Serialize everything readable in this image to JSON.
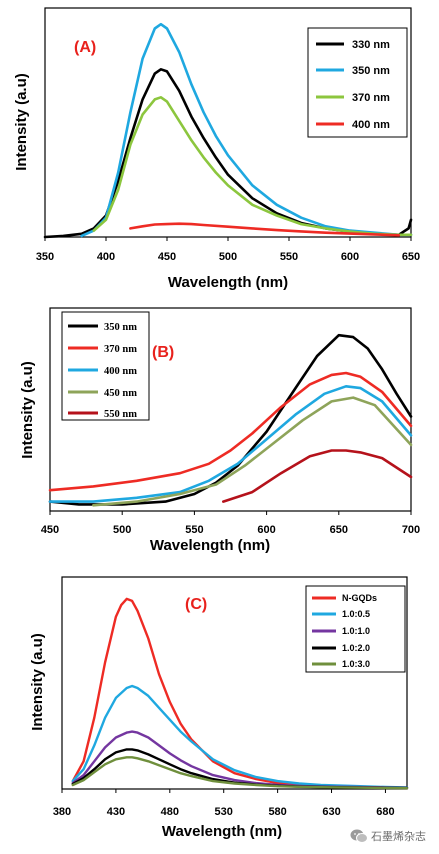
{
  "watermark": "石墨烯杂志",
  "chart_data": [
    {
      "panel": "(A)",
      "type": "line",
      "xlabel": "Wavelength (nm)",
      "ylabel": "Intensity (a.u)",
      "xlim": [
        350,
        650
      ],
      "ylim": [
        0,
        100
      ],
      "xticks": [
        350,
        400,
        450,
        500,
        550,
        600,
        650
      ],
      "yticks_visible": false,
      "legend_position": "top-right",
      "series": [
        {
          "name": "330 nm",
          "color": "#000000",
          "x": [
            350,
            365,
            380,
            390,
            400,
            410,
            420,
            430,
            440,
            445,
            450,
            460,
            470,
            480,
            490,
            500,
            520,
            540,
            560,
            580,
            600,
            620,
            640,
            648,
            650
          ],
          "y": [
            0,
            0.5,
            1.5,
            4,
            10,
            26,
            46,
            64,
            76,
            78,
            77,
            68,
            56,
            46,
            37,
            29,
            18,
            11,
            6.5,
            4,
            2.5,
            1.5,
            1,
            4,
            8
          ]
        },
        {
          "name": "350 nm",
          "color": "#1fa8e0",
          "x": [
            380,
            390,
            400,
            410,
            420,
            430,
            440,
            445,
            450,
            460,
            470,
            480,
            490,
            500,
            520,
            540,
            560,
            580,
            600,
            620,
            640,
            650
          ],
          "y": [
            0.5,
            3,
            9,
            30,
            58,
            83,
            97,
            99,
            97,
            86,
            71,
            58,
            47,
            38,
            24,
            15,
            9,
            5,
            3,
            2,
            1,
            1
          ]
        },
        {
          "name": "370 nm",
          "color": "#8cc63e",
          "x": [
            390,
            400,
            410,
            420,
            430,
            440,
            445,
            450,
            460,
            470,
            480,
            490,
            500,
            520,
            540,
            560,
            580,
            600,
            620,
            640,
            650
          ],
          "y": [
            3,
            8,
            22,
            43,
            57,
            64,
            65,
            63,
            54,
            45,
            37,
            30,
            24,
            15,
            10,
            6,
            4,
            2.5,
            1.5,
            1,
            1
          ]
        },
        {
          "name": "400 nm",
          "color": "#ee2b24",
          "x": [
            420,
            430,
            440,
            450,
            460,
            470,
            480,
            500,
            520,
            540,
            560,
            580,
            600,
            620,
            640
          ],
          "y": [
            4,
            5,
            5.8,
            6,
            6.2,
            6,
            5.6,
            4.8,
            4,
            3.2,
            2.6,
            2,
            1.6,
            1.2,
            0.8
          ]
        }
      ]
    },
    {
      "panel": "(B)",
      "type": "line",
      "xlabel": "Wavelength (nm)",
      "ylabel": "Intensity (a.u)",
      "xlim": [
        450,
        700
      ],
      "ylim": [
        0,
        100
      ],
      "xticks": [
        450,
        500,
        550,
        600,
        650,
        700
      ],
      "yticks_visible": false,
      "legend_position": "top-left",
      "series": [
        {
          "name": "350 nm",
          "color": "#000000",
          "x": [
            450,
            470,
            500,
            530,
            550,
            565,
            580,
            600,
            620,
            635,
            650,
            660,
            670,
            680,
            690,
            700
          ],
          "y": [
            5,
            3.5,
            3.5,
            5,
            9,
            15,
            24,
            42,
            65,
            82,
            93,
            92,
            86,
            75,
            62,
            50
          ]
        },
        {
          "name": "370 nm",
          "color": "#ee2b24",
          "x": [
            450,
            480,
            510,
            540,
            560,
            575,
            590,
            610,
            630,
            645,
            655,
            665,
            680,
            700
          ],
          "y": [
            11,
            13,
            16,
            20,
            25,
            32,
            41,
            55,
            67,
            72,
            73,
            71,
            63,
            45
          ]
        },
        {
          "name": "400 nm",
          "color": "#1fa8e0",
          "x": [
            450,
            480,
            510,
            540,
            560,
            580,
            600,
            620,
            640,
            655,
            665,
            680,
            700
          ],
          "y": [
            5,
            5,
            7,
            10,
            16,
            25,
            38,
            51,
            62,
            66,
            65,
            58,
            40
          ]
        },
        {
          "name": "450 nm",
          "color": "#8ea45a",
          "x": [
            480,
            510,
            540,
            565,
            585,
            605,
            625,
            645,
            660,
            675,
            700
          ],
          "y": [
            3,
            5,
            9,
            14,
            24,
            36,
            48,
            58,
            60,
            56,
            35
          ]
        },
        {
          "name": "550 nm",
          "color": "#b5121b",
          "x": [
            570,
            590,
            610,
            630,
            645,
            655,
            665,
            680,
            700
          ],
          "y": [
            5,
            10,
            20,
            29,
            32,
            32,
            31,
            28,
            18
          ]
        }
      ]
    },
    {
      "panel": "(C)",
      "type": "line",
      "xlabel": "Wavelength (nm)",
      "ylabel": "Intensity (a.u)",
      "xlim": [
        380,
        700
      ],
      "ylim": [
        0,
        100
      ],
      "xticks": [
        380,
        430,
        480,
        530,
        580,
        630,
        680
      ],
      "yticks_visible": false,
      "legend_position": "top-right",
      "series": [
        {
          "name": "N-GQDs",
          "color": "#ee2b24",
          "x": [
            390,
            400,
            410,
            420,
            430,
            435,
            440,
            445,
            450,
            460,
            470,
            480,
            490,
            500,
            520,
            540,
            560,
            580,
            600,
            620,
            650,
            680,
            700
          ],
          "y": [
            4,
            14,
            36,
            64,
            87,
            93,
            96,
            95,
            90,
            76,
            58,
            44,
            33,
            25,
            14,
            8,
            5,
            3,
            2,
            1.5,
            1,
            0.8,
            0.5
          ]
        },
        {
          "name": "1.0:0.5",
          "color": "#1fa8e0",
          "x": [
            390,
            400,
            410,
            420,
            430,
            440,
            445,
            450,
            460,
            470,
            480,
            490,
            500,
            520,
            540,
            560,
            580,
            600,
            620,
            650,
            680,
            700
          ],
          "y": [
            4,
            10,
            22,
            36,
            46,
            51,
            52,
            51,
            47,
            41,
            35,
            29,
            24,
            15,
            9.5,
            6,
            4,
            2.8,
            2,
            1.5,
            1,
            0.8
          ]
        },
        {
          "name": "1.0:1.0",
          "color": "#7436a0",
          "x": [
            390,
            400,
            410,
            420,
            430,
            440,
            445,
            450,
            460,
            470,
            480,
            490,
            500,
            520,
            540,
            560,
            580,
            600,
            620,
            650,
            680,
            700
          ],
          "y": [
            3,
            7,
            14,
            21,
            26,
            28.5,
            29,
            28.5,
            26,
            22,
            18,
            14.5,
            11.5,
            7,
            4.5,
            3,
            2,
            1.5,
            1.2,
            1,
            0.8,
            0.6
          ]
        },
        {
          "name": "1.0:2.0",
          "color": "#000000",
          "x": [
            390,
            400,
            410,
            420,
            430,
            440,
            445,
            450,
            460,
            470,
            480,
            490,
            500,
            520,
            540,
            560,
            580,
            600,
            620,
            650,
            680,
            700
          ],
          "y": [
            2.5,
            5.5,
            10,
            15,
            18.5,
            20,
            20,
            19.5,
            17.5,
            15,
            12.5,
            10,
            8,
            5,
            3.2,
            2.2,
            1.6,
            1.2,
            1,
            0.8,
            0.6,
            0.5
          ]
        },
        {
          "name": "1.0:3.0",
          "color": "#6f8f3c",
          "x": [
            390,
            400,
            410,
            420,
            430,
            440,
            445,
            450,
            460,
            470,
            480,
            490,
            500,
            520,
            540,
            560,
            580,
            600,
            620,
            650,
            680,
            700
          ],
          "y": [
            2,
            4.5,
            8.5,
            12.5,
            15,
            16,
            16,
            15.5,
            14,
            12,
            10,
            8,
            6.5,
            4,
            2.8,
            2,
            1.4,
            1.1,
            0.9,
            0.7,
            0.5,
            0.4
          ]
        }
      ]
    }
  ]
}
